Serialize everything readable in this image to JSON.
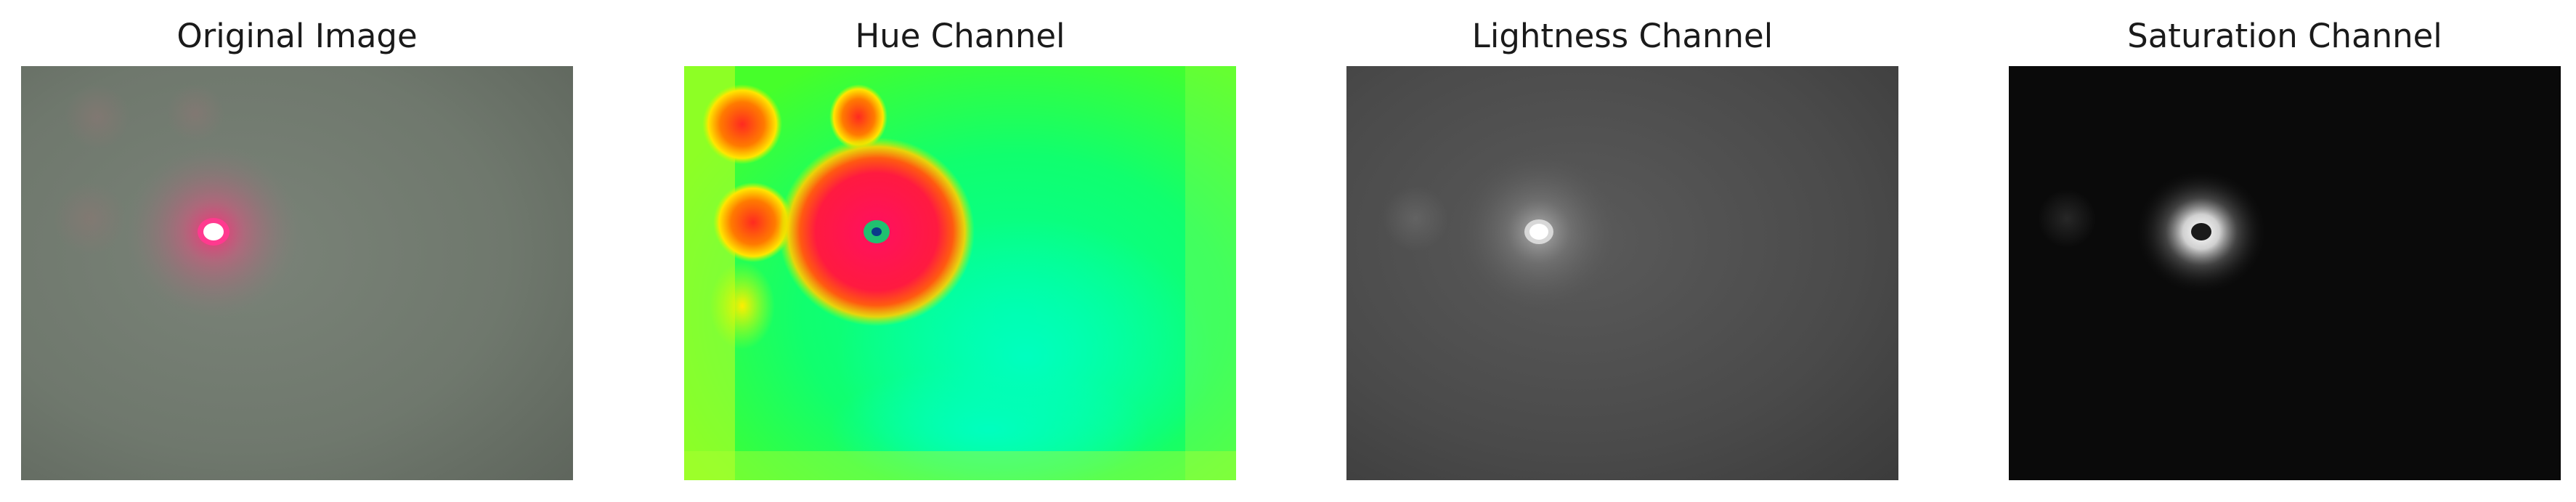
{
  "figure": {
    "panels": [
      {
        "title": "Original Image",
        "kind": "original"
      },
      {
        "title": "Hue Channel",
        "kind": "hue"
      },
      {
        "title": "Lightness Channel",
        "kind": "lightness"
      },
      {
        "title": "Saturation Channel",
        "kind": "saturation"
      }
    ]
  }
}
